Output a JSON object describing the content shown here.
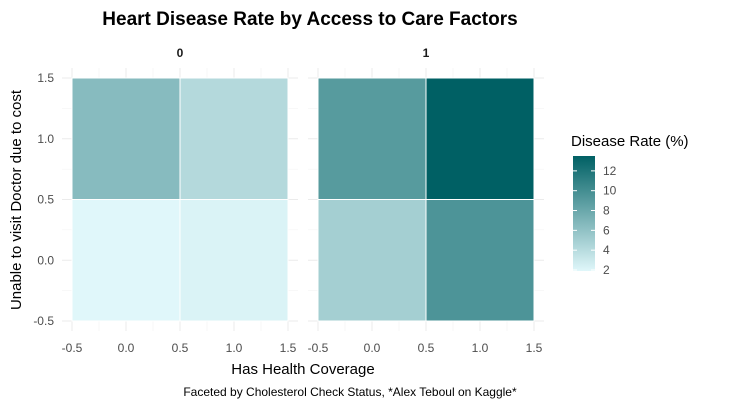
{
  "chart_data": {
    "type": "heatmap",
    "title": "Heart Disease Rate by Access to Care Factors",
    "xlabel": "Has Health Coverage",
    "ylabel": "Unable to visit Doctor due to cost",
    "caption": "Faceted by Cholesterol Check Status, *Alex Teboul on Kaggle*",
    "x_ticks": [
      "-0.5",
      "0.0",
      "0.5",
      "1.0",
      "1.5"
    ],
    "y_ticks": [
      "-0.5",
      "0.0",
      "0.5",
      "1.0",
      "1.5"
    ],
    "xlim": [
      -0.5,
      1.5
    ],
    "ylim": [
      -0.5,
      1.5
    ],
    "facets": [
      {
        "label": "0",
        "cells": [
          {
            "x": 0,
            "y": 0,
            "value": 1.9
          },
          {
            "x": 1,
            "y": 0,
            "value": 2.2
          },
          {
            "x": 0,
            "y": 1,
            "value": 6.5
          },
          {
            "x": 1,
            "y": 1,
            "value": 4.2
          }
        ]
      },
      {
        "label": "1",
        "cells": [
          {
            "x": 0,
            "y": 0,
            "value": 5.0
          },
          {
            "x": 1,
            "y": 0,
            "value": 9.5
          },
          {
            "x": 0,
            "y": 1,
            "value": 9.0
          },
          {
            "x": 1,
            "y": 1,
            "value": 13.5
          }
        ]
      }
    ],
    "legend": {
      "title": "Disease Rate (%)",
      "ticks": [
        "2",
        "4",
        "6",
        "8",
        "10",
        "12"
      ],
      "range": [
        1.9,
        13.5
      ],
      "low_color": "#e0f7fa",
      "high_color": "#006064",
      "placement": "right"
    },
    "grid": true
  }
}
